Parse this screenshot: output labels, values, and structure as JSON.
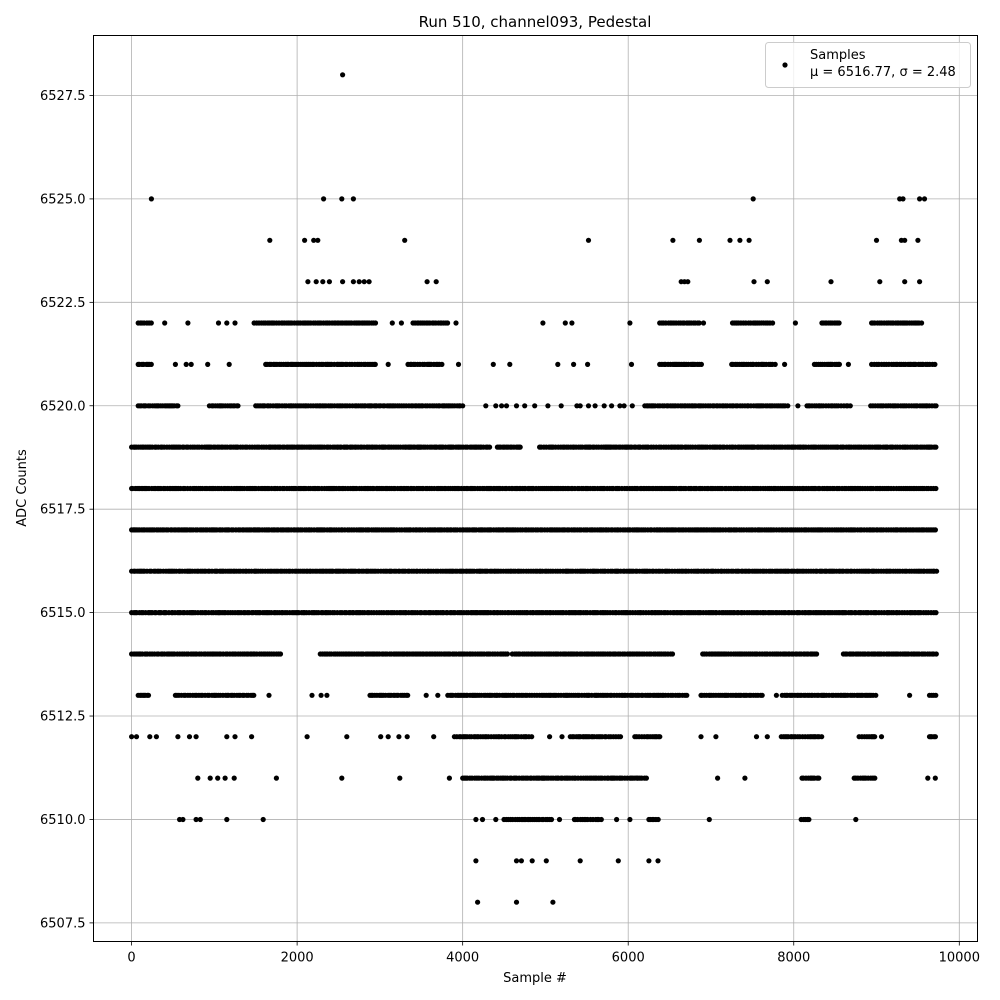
{
  "chart_data": {
    "type": "scatter",
    "title": "Run 510, channel093, Pedestal",
    "xlabel": "Sample #",
    "ylabel": "ADC Counts",
    "xlim": [
      -460,
      10220
    ],
    "ylim": [
      6507.05,
      6528.95
    ],
    "x_ticks": [
      0,
      2000,
      4000,
      6000,
      8000,
      10000
    ],
    "x_tick_labels": [
      "0",
      "2000",
      "4000",
      "6000",
      "8000",
      "10000"
    ],
    "y_ticks": [
      6507.5,
      6510.0,
      6512.5,
      6515.0,
      6517.5,
      6520.0,
      6522.5,
      6525.0,
      6527.5
    ],
    "y_tick_labels": [
      "6507.5",
      "6510.0",
      "6512.5",
      "6515.0",
      "6517.5",
      "6520.0",
      "6522.5",
      "6525.0",
      "6527.5"
    ],
    "grid": true,
    "legend": {
      "placement": "upper-right",
      "entries": [
        {
          "label": "Samples",
          "stats": "μ = 6516.77, σ = 2.48"
        }
      ]
    },
    "marker_color": "#000000",
    "n_samples": 9728,
    "series": [
      {
        "name": "Samples",
        "note_levels_and_occupancy": "Integer ADC levels; each level lists x-intervals (sample #) that are densely populated plus sparse isolated points",
        "levels": [
          {
            "y": 6528,
            "dense": [],
            "sparse": [
              2550
            ]
          },
          {
            "y": 6525,
            "dense": [],
            "sparse": [
              240,
              2320,
              2540,
              2680,
              7510,
              9280,
              9320,
              9520,
              9580
            ]
          },
          {
            "y": 6524,
            "dense": [],
            "sparse": [
              1670,
              2090,
              2200,
              2250,
              3300,
              5520,
              6540,
              6860,
              7230,
              7350,
              7460,
              9000,
              9300,
              9340,
              9500
            ]
          },
          {
            "y": 6523,
            "dense": [],
            "sparse": [
              2130,
              2230,
              2310,
              2390,
              2550,
              2680,
              2750,
              2810,
              2870,
              3570,
              3680,
              6640,
              6680,
              6720,
              7520,
              7680,
              8450,
              9040,
              9340,
              9520
            ]
          },
          {
            "y": 6522,
            "dense": [
              [
                80,
                240
              ],
              [
                1480,
                2970
              ],
              [
                3400,
                3820
              ],
              [
                6380,
                6860
              ],
              [
                7260,
                7770
              ],
              [
                8340,
                8560
              ],
              [
                8940,
                9560
              ]
            ],
            "sparse": [
              400,
              680,
              1050,
              1150,
              1250,
              3150,
              3260,
              3920,
              4970,
              5240,
              5320,
              6020,
              6910,
              8020
            ]
          },
          {
            "y": 6522,
            "dense": [],
            "sparse": []
          },
          {
            "y": 6521,
            "dense": [
              [
                80,
                260
              ],
              [
                1620,
                2970
              ],
              [
                3340,
                3760
              ],
              [
                6380,
                6900
              ],
              [
                7250,
                7780
              ],
              [
                8250,
                8560
              ],
              [
                8940,
                9720
              ]
            ],
            "sparse": [
              530,
              660,
              720,
              920,
              1180,
              3100,
              3950,
              4370,
              4570,
              5150,
              5340,
              5510,
              6040,
              7890,
              8660
            ]
          },
          {
            "y": 6520,
            "dense": [
              [
                80,
                560
              ],
              [
                940,
                1300
              ],
              [
                1500,
                4000
              ],
              [
                6200,
                7950
              ],
              [
                8160,
                8690
              ],
              [
                8930,
                9730
              ]
            ],
            "sparse": [
              4280,
              4400,
              4470,
              4530,
              4650,
              4750,
              4870,
              5030,
              5190,
              5380,
              5420,
              5520,
              5600,
              5710,
              5800,
              5900,
              5950,
              6050,
              8050
            ]
          },
          {
            "y": 6519,
            "dense": [
              [
                0,
                4350
              ],
              [
                4420,
                4700
              ],
              [
                4930,
                9730
              ]
            ],
            "sparse": []
          },
          {
            "y": 6518,
            "dense": [
              [
                0,
                9730
              ]
            ],
            "sparse": []
          },
          {
            "y": 6517,
            "dense": [
              [
                0,
                9730
              ]
            ],
            "sparse": []
          },
          {
            "y": 6516,
            "dense": [
              [
                0,
                9730
              ]
            ],
            "sparse": []
          },
          {
            "y": 6515,
            "dense": [
              [
                0,
                9730
              ]
            ],
            "sparse": []
          },
          {
            "y": 6514,
            "dense": [
              [
                0,
                1800
              ],
              [
                2280,
                4550
              ],
              [
                4600,
                6550
              ],
              [
                6900,
                8300
              ],
              [
                8600,
                9730
              ]
            ],
            "sparse": []
          },
          {
            "y": 6513,
            "dense": [
              [
                80,
                220
              ],
              [
                530,
                1500
              ],
              [
                2880,
                3350
              ],
              [
                3820,
                6720
              ],
              [
                6880,
                7640
              ],
              [
                7860,
                9020
              ],
              [
                9640,
                9730
              ]
            ],
            "sparse": [
              1660,
              2180,
              2290,
              2360,
              3560,
              3700,
              7790,
              9400
            ]
          },
          {
            "y": 6512,
            "dense": [
              [
                3900,
                4850
              ],
              [
                5300,
                5920
              ],
              [
                6080,
                6400
              ],
              [
                7850,
                8350
              ],
              [
                8790,
                9000
              ],
              [
                9640,
                9730
              ]
            ],
            "sparse": [
              0,
              60,
              220,
              300,
              560,
              700,
              780,
              1150,
              1250,
              1450,
              2120,
              2600,
              3010,
              3100,
              3230,
              3330,
              3650,
              5200,
              5050,
              6880,
              7060,
              7550,
              7680,
              9060
            ]
          },
          {
            "y": 6511,
            "dense": [
              [
                4000,
                6220
              ],
              [
                8100,
                8320
              ],
              [
                8730,
                9000
              ]
            ],
            "sparse": [
              800,
              950,
              1040,
              1130,
              1240,
              1750,
              2540,
              3240,
              3840,
              7080,
              7410,
              9620,
              9710
            ]
          },
          {
            "y": 6510,
            "dense": [
              [
                4500,
                5100
              ],
              [
                5350,
                5700
              ],
              [
                6250,
                6370
              ],
              [
                8090,
                8190
              ]
            ],
            "sparse": [
              580,
              620,
              780,
              830,
              1150,
              1590,
              4160,
              4240,
              4400,
              5170,
              5860,
              6020,
              6980,
              8750
            ]
          },
          {
            "y": 6509,
            "dense": [],
            "sparse": [
              4160,
              4650,
              4710,
              4840,
              5010,
              5420,
              5880,
              6250,
              6360
            ]
          },
          {
            "y": 6508,
            "dense": [],
            "sparse": [
              4180,
              4650,
              5090
            ]
          }
        ]
      }
    ]
  }
}
